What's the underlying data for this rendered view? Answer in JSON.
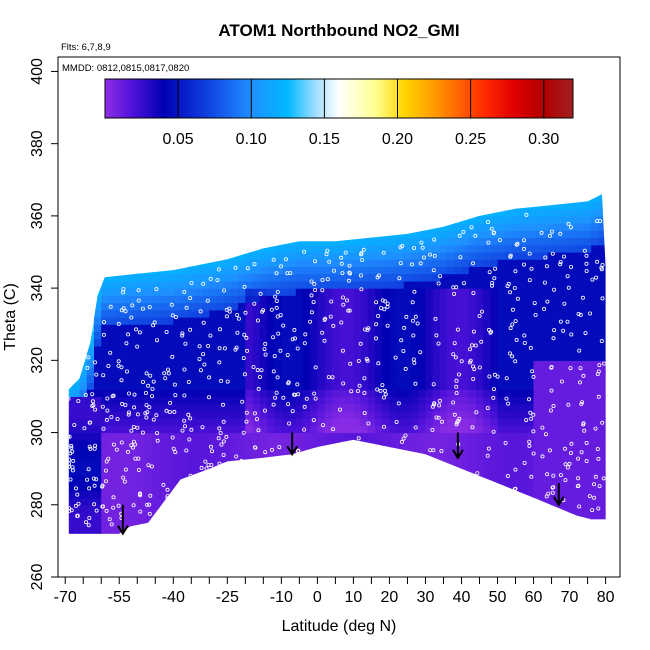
{
  "chart_data": {
    "type": "heatmap",
    "title": "ATOM1 Northbound NO2_GMI",
    "flights_note": "Flts: 6,7,8,9",
    "dates_note": "MMDD: 0812,0815,0817,0820",
    "xlabel": "Latitude (deg N)",
    "ylabel": "Theta (C)",
    "xlim": [
      -72,
      84
    ],
    "ylim": [
      260,
      404
    ],
    "x_ticks": [
      -70,
      -55,
      -40,
      -25,
      -10,
      0,
      10,
      20,
      30,
      40,
      50,
      60,
      70,
      80
    ],
    "x_tick_labels": [
      "-70",
      "-55",
      "-40",
      "-25",
      "-10",
      "0",
      "10",
      "20",
      "30",
      "40",
      "50",
      "60",
      "70",
      "80"
    ],
    "x_minor_ticks": [
      -65,
      -60,
      -50,
      -45,
      -35,
      -30,
      -20,
      -15,
      -5,
      5,
      15,
      25,
      35,
      45,
      55,
      65,
      75
    ],
    "y_ticks": [
      260,
      280,
      300,
      320,
      340,
      360,
      380,
      400
    ],
    "y_tick_labels": [
      "260",
      "280",
      "300",
      "320",
      "340",
      "360",
      "380",
      "400"
    ],
    "colorbar": {
      "range": [
        0,
        0.32
      ],
      "ticks": [
        0.05,
        0.1,
        0.15,
        0.2,
        0.25,
        0.3
      ],
      "tick_labels": [
        "0.05",
        "0.10",
        "0.15",
        "0.20",
        "0.25",
        "0.30"
      ],
      "stops": [
        {
          "v": 0.0,
          "c": "#8e2ee6"
        },
        {
          "v": 0.02,
          "c": "#4b10d8"
        },
        {
          "v": 0.04,
          "c": "#0000b4"
        },
        {
          "v": 0.07,
          "c": "#1040e0"
        },
        {
          "v": 0.1,
          "c": "#1f8fff"
        },
        {
          "v": 0.125,
          "c": "#00b8ff"
        },
        {
          "v": 0.145,
          "c": "#a8e0ff"
        },
        {
          "v": 0.16,
          "c": "#ffffff"
        },
        {
          "v": 0.185,
          "c": "#ffff90"
        },
        {
          "v": 0.205,
          "c": "#ffd400"
        },
        {
          "v": 0.23,
          "c": "#ff8c00"
        },
        {
          "v": 0.26,
          "c": "#ff2800"
        },
        {
          "v": 0.28,
          "c": "#e00000"
        },
        {
          "v": 0.3,
          "c": "#b20000"
        },
        {
          "v": 0.32,
          "c": "#a02020"
        }
      ]
    },
    "profile_top": [
      [
        -69,
        312
      ],
      [
        -66,
        315
      ],
      [
        -63,
        325
      ],
      [
        -61,
        338
      ],
      [
        -59,
        343
      ],
      [
        -50,
        344
      ],
      [
        -40,
        345
      ],
      [
        -25,
        348
      ],
      [
        -15,
        351
      ],
      [
        -5,
        353
      ],
      [
        5,
        353
      ],
      [
        15,
        354
      ],
      [
        25,
        355
      ],
      [
        35,
        357
      ],
      [
        45,
        360
      ],
      [
        55,
        362
      ],
      [
        65,
        363
      ],
      [
        75,
        364
      ],
      [
        79,
        366
      ],
      [
        80,
        346
      ],
      [
        80,
        300
      ]
    ],
    "profile_bottom": [
      [
        80,
        276
      ],
      [
        76,
        276
      ],
      [
        72,
        277
      ],
      [
        60,
        282
      ],
      [
        50,
        286
      ],
      [
        40,
        290
      ],
      [
        30,
        294
      ],
      [
        20,
        296
      ],
      [
        10,
        298
      ],
      [
        0,
        296
      ],
      [
        -7,
        294
      ],
      [
        -15,
        293
      ],
      [
        -25,
        292
      ],
      [
        -30,
        290
      ],
      [
        -38,
        287
      ],
      [
        -47,
        275
      ],
      [
        -52,
        274
      ],
      [
        -55,
        272
      ],
      [
        -69,
        272
      ]
    ],
    "arrows": [
      {
        "lat": -54,
        "theta_top": 280,
        "theta_tip": 272
      },
      {
        "lat": -7,
        "theta_top": 300,
        "theta_tip": 294
      },
      {
        "lat": 39,
        "theta_top": 300,
        "theta_tip": 293
      },
      {
        "lat": 67,
        "theta_top": 286,
        "theta_tip": 280
      }
    ],
    "colors": {
      "arrow": "#000000",
      "points": "#ffffff",
      "frame": "#000000"
    }
  }
}
